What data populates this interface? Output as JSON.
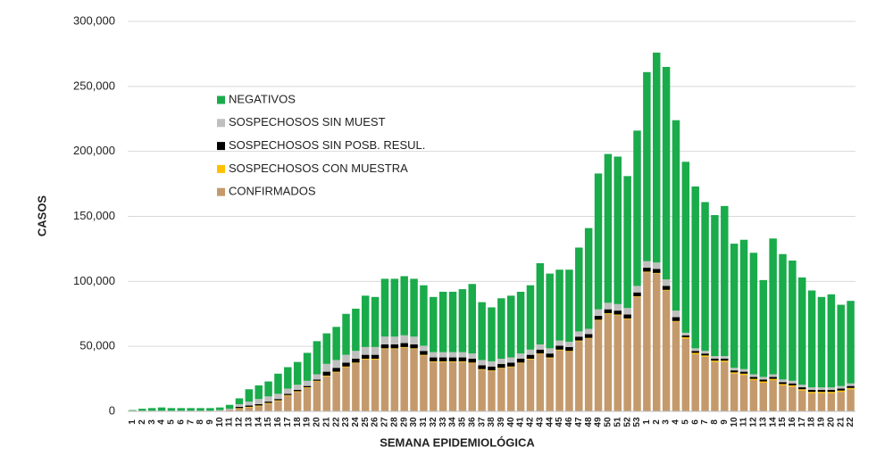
{
  "chart_data": {
    "type": "stacked_bar",
    "x_label": "SEMANA EPIDEMIOLÓGICA",
    "y_label": "CASOS",
    "categories": [
      "1",
      "2",
      "3",
      "4",
      "5",
      "6",
      "7",
      "8",
      "9",
      "10",
      "11",
      "12",
      "13",
      "14",
      "15",
      "16",
      "17",
      "18",
      "19",
      "20",
      "21",
      "22",
      "23",
      "24",
      "25",
      "26",
      "27",
      "28",
      "29",
      "30",
      "31",
      "32",
      "33",
      "34",
      "35",
      "36",
      "37",
      "38",
      "39",
      "40",
      "41",
      "42",
      "43",
      "44",
      "45",
      "46",
      "47",
      "48",
      "49",
      "50",
      "51",
      "52",
      "53",
      "1",
      "2",
      "3",
      "4",
      "5",
      "6",
      "7",
      "8",
      "9",
      "10",
      "11",
      "12",
      "13",
      "14",
      "15",
      "16",
      "17",
      "18",
      "19",
      "20",
      "21",
      "22"
    ],
    "series": [
      {
        "name": "CONFIRMADOS",
        "color": "#c49a6c",
        "values": [
          0,
          0,
          0,
          0,
          0,
          0,
          0,
          0,
          0,
          500,
          1000,
          2000,
          3000,
          4000,
          6000,
          8000,
          12000,
          15000,
          18000,
          23000,
          27000,
          30000,
          34000,
          37000,
          40000,
          40000,
          48000,
          48000,
          49000,
          48000,
          43000,
          38000,
          38000,
          38000,
          38000,
          37000,
          32000,
          31000,
          33000,
          34000,
          37000,
          40000,
          44000,
          41000,
          47000,
          46000,
          54000,
          56000,
          70000,
          75000,
          74000,
          71000,
          88000,
          107000,
          106000,
          93000,
          69000,
          56000,
          44000,
          42000,
          38000,
          38000,
          29000,
          28000,
          24000,
          22000,
          24000,
          20000,
          19000,
          16000,
          14000,
          14000,
          14000,
          15000,
          17000
        ]
      },
      {
        "name": "SOSPECHOSOS CON MUESTRA",
        "color": "#ffc000",
        "values": [
          0,
          0,
          0,
          0,
          0,
          0,
          0,
          0,
          0,
          0,
          0,
          500,
          500,
          500,
          500,
          500,
          500,
          500,
          500,
          500,
          500,
          500,
          500,
          500,
          500,
          500,
          500,
          500,
          500,
          500,
          500,
          500,
          500,
          500,
          500,
          500,
          500,
          500,
          500,
          500,
          500,
          500,
          500,
          500,
          500,
          500,
          500,
          500,
          500,
          500,
          500,
          500,
          500,
          500,
          500,
          500,
          500,
          1000,
          1000,
          1000,
          1000,
          1000,
          1000,
          1000,
          1000,
          1000,
          1000,
          1000,
          1000,
          1000,
          1000,
          1000,
          1000,
          1000,
          1000
        ]
      },
      {
        "name": "SOSPECHOSOS SIN POSB. RESUL.",
        "color": "#000000",
        "values": [
          0,
          0,
          0,
          0,
          0,
          0,
          0,
          0,
          0,
          0,
          0,
          1000,
          1000,
          1000,
          1000,
          1000,
          1000,
          1000,
          1000,
          1000,
          3000,
          3000,
          3000,
          3000,
          3000,
          3000,
          3000,
          3000,
          3000,
          3000,
          3000,
          3000,
          3000,
          3000,
          3000,
          3000,
          3000,
          3000,
          3000,
          3000,
          3000,
          3000,
          3000,
          3000,
          3000,
          3000,
          3000,
          3000,
          3000,
          3000,
          3000,
          3000,
          3000,
          3000,
          3000,
          3000,
          3000,
          1500,
          1500,
          1500,
          1500,
          1500,
          1500,
          1500,
          1500,
          1500,
          1500,
          1500,
          1500,
          1500,
          1500,
          1500,
          1500,
          1500,
          1500
        ]
      },
      {
        "name": "SOSPECHOSOS SIN MUEST",
        "color": "#bfbfbf",
        "values": [
          500,
          500,
          500,
          500,
          500,
          500,
          500,
          500,
          500,
          500,
          1000,
          2000,
          3000,
          4000,
          4000,
          4000,
          4000,
          4000,
          4000,
          4000,
          6000,
          6000,
          6000,
          6000,
          6000,
          6000,
          6000,
          6000,
          6000,
          6000,
          4000,
          4000,
          4000,
          4000,
          4000,
          4000,
          4000,
          4000,
          4000,
          4000,
          4000,
          4000,
          4000,
          4000,
          4000,
          4000,
          4000,
          4000,
          5000,
          5000,
          5000,
          5000,
          5000,
          5000,
          5000,
          5000,
          5000,
          2000,
          2000,
          2000,
          2000,
          2000,
          2000,
          2000,
          2000,
          2000,
          2000,
          2000,
          2000,
          2000,
          2000,
          2000,
          2000,
          2000,
          2000
        ]
      },
      {
        "name": "NEGATIVOS",
        "color": "#1aab4b",
        "values": [
          500,
          1500,
          2000,
          2500,
          2000,
          2000,
          2000,
          2000,
          2000,
          2000,
          3000,
          4500,
          9500,
          10500,
          11500,
          15500,
          16500,
          17500,
          21500,
          25500,
          23500,
          25500,
          31500,
          32500,
          39500,
          38500,
          44500,
          44500,
          45500,
          44500,
          46500,
          42500,
          46500,
          46500,
          48500,
          53500,
          44500,
          41500,
          46500,
          47500,
          47500,
          49500,
          62500,
          57500,
          54500,
          55500,
          64500,
          77500,
          104500,
          114500,
          113500,
          101500,
          119500,
          145500,
          161500,
          163500,
          146500,
          131500,
          124500,
          114500,
          108500,
          115500,
          95500,
          99500,
          93500,
          74500,
          104500,
          96500,
          92500,
          82500,
          74500,
          69500,
          71500,
          62500,
          63500
        ]
      }
    ],
    "ylim": [
      0,
      300000
    ],
    "yticks": [
      0,
      {
        "value": 50000,
        "label": "50,000"
      },
      {
        "value": 100000,
        "label": "100,000"
      },
      {
        "value": 150000,
        "label": "150,000"
      },
      {
        "value": 200000,
        "label": "200,000"
      },
      {
        "value": 250000,
        "label": "250,000"
      },
      {
        "value": 300000,
        "label": "300,000"
      }
    ],
    "grid": true
  }
}
